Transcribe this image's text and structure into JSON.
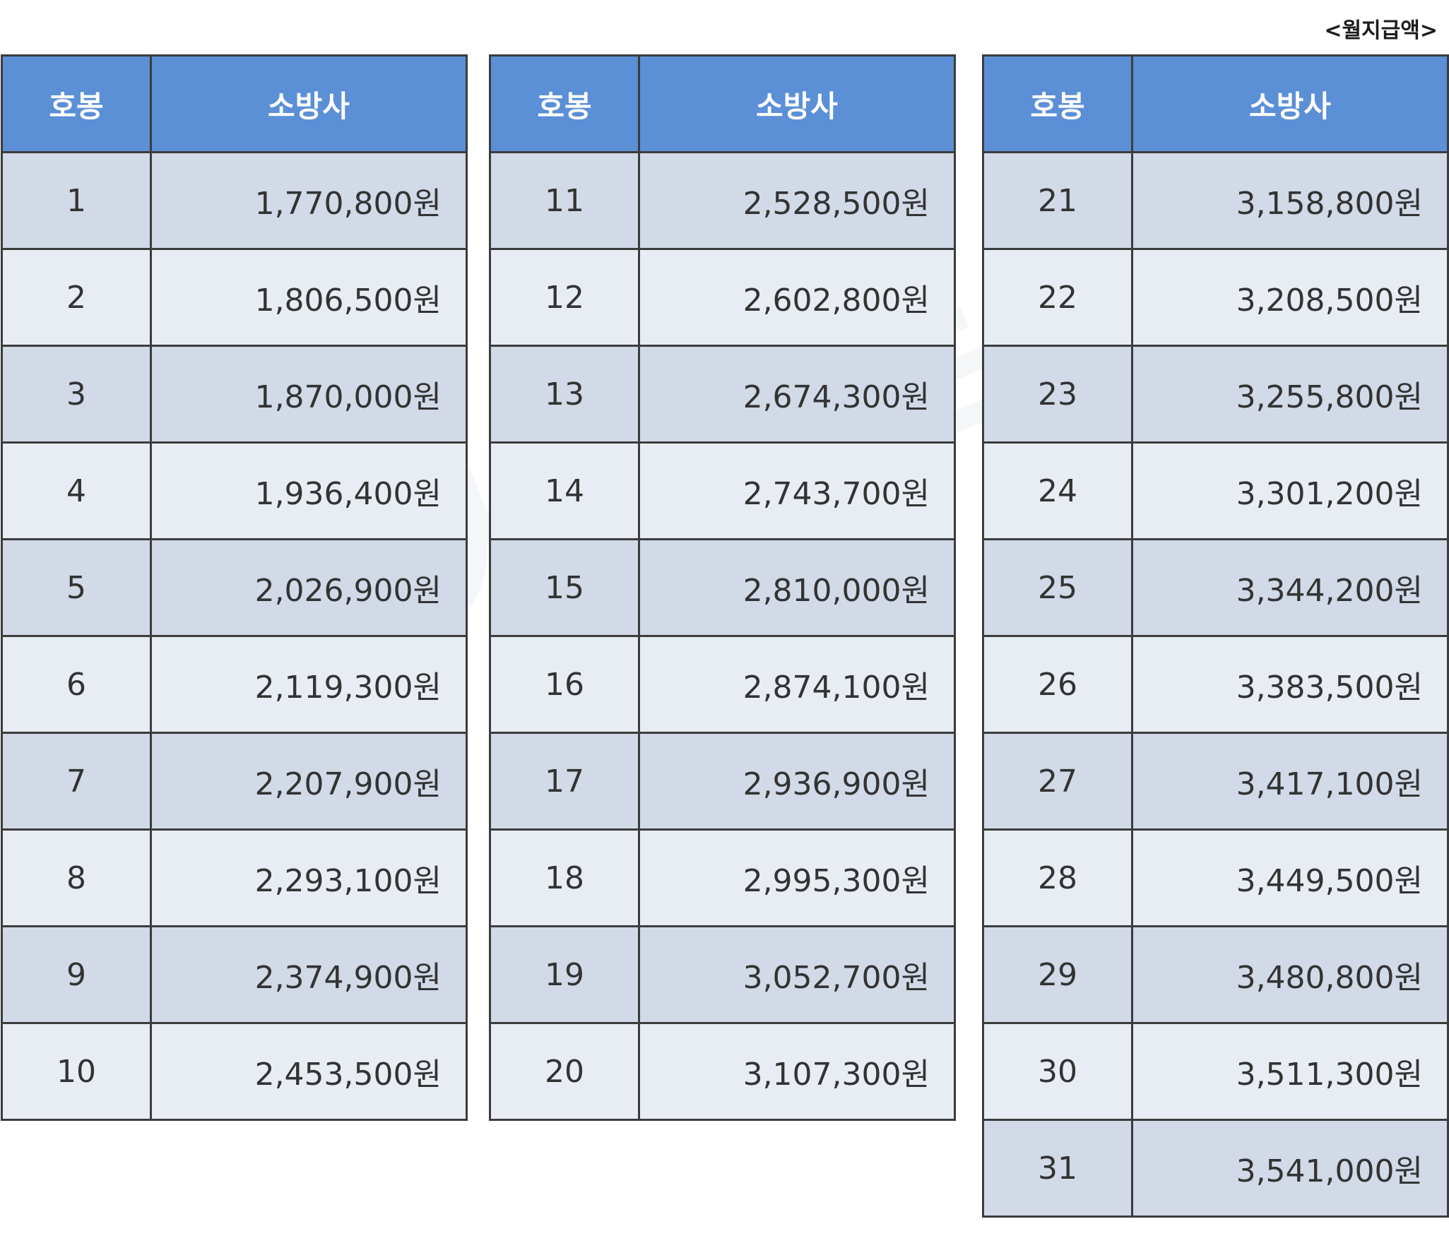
{
  "caption": "<월지급액>",
  "watermark": "인사이트닷",
  "columns": {
    "step_header": "호봉",
    "amount_header": "소방사"
  },
  "tables": [
    {
      "rows": [
        {
          "step": "1",
          "amount": "1,770,800원"
        },
        {
          "step": "2",
          "amount": "1,806,500원"
        },
        {
          "step": "3",
          "amount": "1,870,000원"
        },
        {
          "step": "4",
          "amount": "1,936,400원"
        },
        {
          "step": "5",
          "amount": "2,026,900원"
        },
        {
          "step": "6",
          "amount": "2,119,300원"
        },
        {
          "step": "7",
          "amount": "2,207,900원"
        },
        {
          "step": "8",
          "amount": "2,293,100원"
        },
        {
          "step": "9",
          "amount": "2,374,900원"
        },
        {
          "step": "10",
          "amount": "2,453,500원"
        }
      ]
    },
    {
      "rows": [
        {
          "step": "11",
          "amount": "2,528,500원"
        },
        {
          "step": "12",
          "amount": "2,602,800원"
        },
        {
          "step": "13",
          "amount": "2,674,300원"
        },
        {
          "step": "14",
          "amount": "2,743,700원"
        },
        {
          "step": "15",
          "amount": "2,810,000원"
        },
        {
          "step": "16",
          "amount": "2,874,100원"
        },
        {
          "step": "17",
          "amount": "2,936,900원"
        },
        {
          "step": "18",
          "amount": "2,995,300원"
        },
        {
          "step": "19",
          "amount": "3,052,700원"
        },
        {
          "step": "20",
          "amount": "3,107,300원"
        }
      ]
    },
    {
      "rows": [
        {
          "step": "21",
          "amount": "3,158,800원"
        },
        {
          "step": "22",
          "amount": "3,208,500원"
        },
        {
          "step": "23",
          "amount": "3,255,800원"
        },
        {
          "step": "24",
          "amount": "3,301,200원"
        },
        {
          "step": "25",
          "amount": "3,344,200원"
        },
        {
          "step": "26",
          "amount": "3,383,500원"
        },
        {
          "step": "27",
          "amount": "3,417,100원"
        },
        {
          "step": "28",
          "amount": "3,449,500원"
        },
        {
          "step": "29",
          "amount": "3,480,800원"
        },
        {
          "step": "30",
          "amount": "3,511,300원"
        },
        {
          "step": "31",
          "amount": "3,541,000원"
        }
      ]
    }
  ],
  "colors": {
    "header_bg": "#5b8fd6",
    "row_odd": "#d2d9e7",
    "row_even": "#e8edf4",
    "border": "#3c3c3c"
  }
}
